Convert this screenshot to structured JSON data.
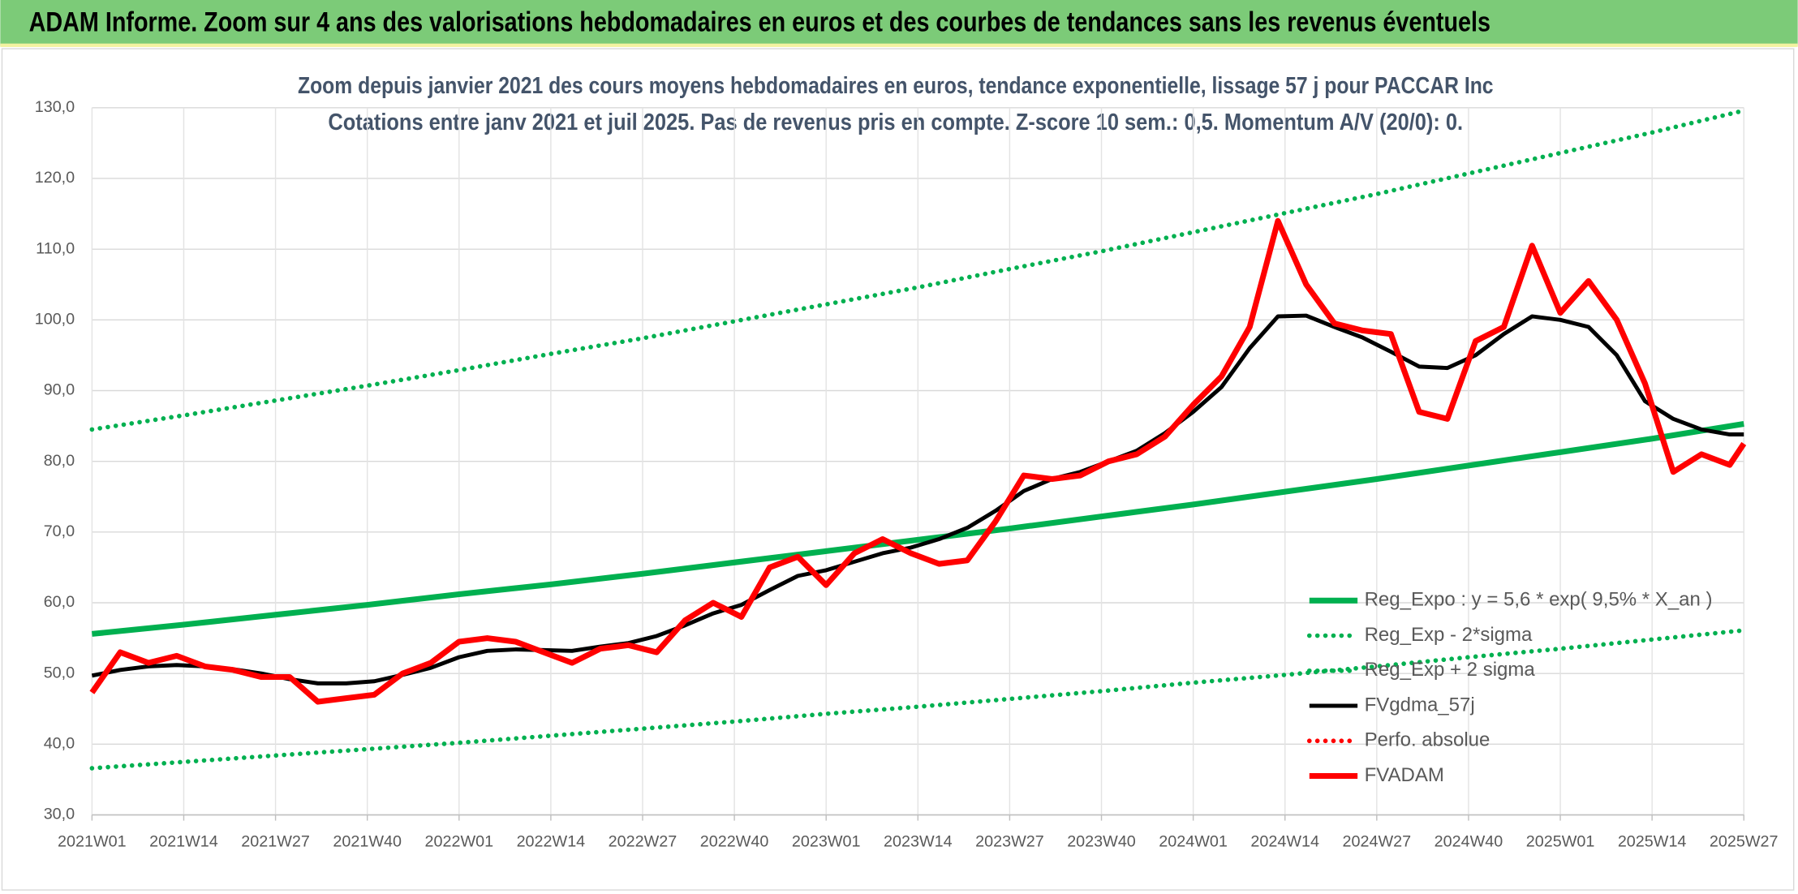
{
  "header": {
    "title": "ADAM Informe. Zoom sur 4 ans des valorisations hebdomadaires en euros et des courbes de tendances sans les revenus éventuels"
  },
  "chart_data": {
    "type": "line",
    "title": "Zoom depuis janvier 2021 des cours moyens hebdomadaires en euros, tendance exponentielle, lissage 57 j pour PACCAR Inc",
    "subtitle": "Cotations entre janv 2021 et juil 2025. Pas de revenus pris en compte. Z-score 10 sem.: 0,5. Momentum A/V (20/0): 0.",
    "xlim": [
      0,
      234
    ],
    "xticks": [
      {
        "value": 0,
        "label": "2021W01"
      },
      {
        "value": 13,
        "label": "2021W14"
      },
      {
        "value": 26,
        "label": "2021W27"
      },
      {
        "value": 39,
        "label": "2021W40"
      },
      {
        "value": 52,
        "label": "2022W01"
      },
      {
        "value": 65,
        "label": "2022W14"
      },
      {
        "value": 78,
        "label": "2022W27"
      },
      {
        "value": 91,
        "label": "2022W40"
      },
      {
        "value": 104,
        "label": "2023W01"
      },
      {
        "value": 117,
        "label": "2023W14"
      },
      {
        "value": 130,
        "label": "2023W27"
      },
      {
        "value": 143,
        "label": "2023W40"
      },
      {
        "value": 156,
        "label": "2024W01"
      },
      {
        "value": 169,
        "label": "2024W14"
      },
      {
        "value": 182,
        "label": "2024W27"
      },
      {
        "value": 195,
        "label": "2024W40"
      },
      {
        "value": 208,
        "label": "2025W01"
      },
      {
        "value": 221,
        "label": "2025W14"
      },
      {
        "value": 234,
        "label": "2025W27"
      }
    ],
    "ylim": [
      30,
      130
    ],
    "yticks": [
      {
        "value": 30,
        "label": "30,0"
      },
      {
        "value": 40,
        "label": "40,0"
      },
      {
        "value": 50,
        "label": "50,0"
      },
      {
        "value": 60,
        "label": "60,0"
      },
      {
        "value": 70,
        "label": "70,0"
      },
      {
        "value": 80,
        "label": "80,0"
      },
      {
        "value": 90,
        "label": "90,0"
      },
      {
        "value": 100,
        "label": "100,0"
      },
      {
        "value": 110,
        "label": "110,0"
      },
      {
        "value": 120,
        "label": "120,0"
      },
      {
        "value": 130,
        "label": "130,0"
      }
    ],
    "grid": true,
    "legend": "lower right",
    "series": [
      {
        "name": "Reg_Expo : y = 5,6 * exp( 9,5% *  X_an )",
        "color": "#00b050",
        "style": "solid",
        "x": [
          0,
          13,
          26,
          39,
          52,
          65,
          78,
          91,
          104,
          117,
          130,
          143,
          156,
          169,
          182,
          195,
          208,
          221,
          234
        ],
        "values": [
          55.6,
          56.9,
          58.3,
          59.7,
          61.2,
          62.6,
          64.1,
          65.7,
          67.3,
          68.9,
          70.5,
          72.2,
          73.9,
          75.7,
          77.5,
          79.4,
          81.3,
          83.2,
          85.3
        ]
      },
      {
        "name": "Reg_Exp - 2*sigma",
        "color": "#00b050",
        "style": "dotted",
        "x": [
          0,
          13,
          26,
          39,
          52,
          65,
          78,
          91,
          104,
          117,
          130,
          143,
          156,
          169,
          182,
          195,
          208,
          221,
          234
        ],
        "values": [
          36.6,
          37.5,
          38.4,
          39.3,
          40.2,
          41.2,
          42.2,
          43.2,
          44.3,
          45.3,
          46.4,
          47.5,
          48.7,
          49.8,
          51.0,
          52.3,
          53.5,
          54.8,
          56.1
        ]
      },
      {
        "name": "Reg_Exp + 2 sigma",
        "color": "#00b050",
        "style": "dotted",
        "x": [
          0,
          13,
          26,
          39,
          52,
          65,
          78,
          91,
          104,
          117,
          130,
          143,
          156,
          169,
          182,
          195,
          208,
          221,
          234
        ],
        "values": [
          84.5,
          86.5,
          88.6,
          90.7,
          92.9,
          95.2,
          97.4,
          99.8,
          102.2,
          104.6,
          107.2,
          109.7,
          112.4,
          115.1,
          117.8,
          120.7,
          123.6,
          126.5,
          129.6
        ]
      },
      {
        "name": "FVgdma_57j",
        "color": "#000000",
        "style": "solid",
        "x": [
          0,
          4,
          8,
          12,
          16,
          20,
          24,
          28,
          32,
          36,
          40,
          44,
          48,
          52,
          56,
          60,
          64,
          68,
          72,
          76,
          80,
          84,
          88,
          92,
          96,
          100,
          104,
          108,
          112,
          116,
          120,
          124,
          128,
          132,
          136,
          140,
          144,
          148,
          152,
          156,
          160,
          164,
          168,
          172,
          176,
          180,
          184,
          188,
          192,
          196,
          200,
          204,
          208,
          212,
          216,
          220,
          224,
          228,
          232,
          234
        ],
        "values": [
          49.7,
          50.5,
          51,
          51.2,
          51,
          50.6,
          50,
          49.2,
          48.6,
          48.6,
          48.9,
          49.8,
          50.8,
          52.3,
          53.2,
          53.4,
          53.3,
          53.2,
          53.8,
          54.3,
          55.3,
          56.8,
          58.5,
          59.7,
          61.8,
          63.8,
          64.6,
          65.8,
          67,
          67.8,
          69,
          70.6,
          73,
          75.8,
          77.5,
          78.5,
          80,
          81.5,
          84,
          87,
          90.5,
          96,
          100.5,
          100.6,
          99,
          97.5,
          95.5,
          93.4,
          93.2,
          95,
          98,
          100.5,
          100,
          99,
          95,
          88.5,
          86,
          84.5,
          83.8,
          83.8
        ]
      },
      {
        "name": "Perfo. absolue",
        "color": "#ff0000",
        "style": "dotted",
        "x": [],
        "values": []
      },
      {
        "name": "FVADAM",
        "color": "#ff0000",
        "style": "solid",
        "x": [
          0,
          4,
          8,
          12,
          16,
          20,
          24,
          28,
          32,
          36,
          40,
          44,
          48,
          52,
          56,
          60,
          64,
          68,
          72,
          76,
          80,
          84,
          88,
          92,
          96,
          100,
          104,
          108,
          112,
          116,
          120,
          124,
          128,
          132,
          136,
          140,
          144,
          148,
          152,
          156,
          160,
          164,
          168,
          172,
          176,
          180,
          184,
          188,
          192,
          196,
          200,
          204,
          208,
          212,
          216,
          220,
          224,
          228,
          232,
          234
        ],
        "values": [
          47.3,
          53,
          51.5,
          52.5,
          51,
          50.5,
          49.5,
          49.5,
          46,
          46.5,
          47,
          50,
          51.5,
          54.5,
          55,
          54.5,
          53,
          51.5,
          53.5,
          54,
          53,
          57.5,
          60,
          58,
          65,
          66.5,
          62.5,
          67,
          69,
          67,
          65.5,
          66,
          71.5,
          78,
          77.5,
          78,
          80,
          81,
          83.5,
          88,
          92,
          99,
          114,
          105,
          99.5,
          98.5,
          98,
          87,
          86,
          97,
          99,
          110.5,
          101,
          105.5,
          100,
          91,
          78.5,
          81,
          79.5,
          82.5
        ]
      }
    ]
  }
}
